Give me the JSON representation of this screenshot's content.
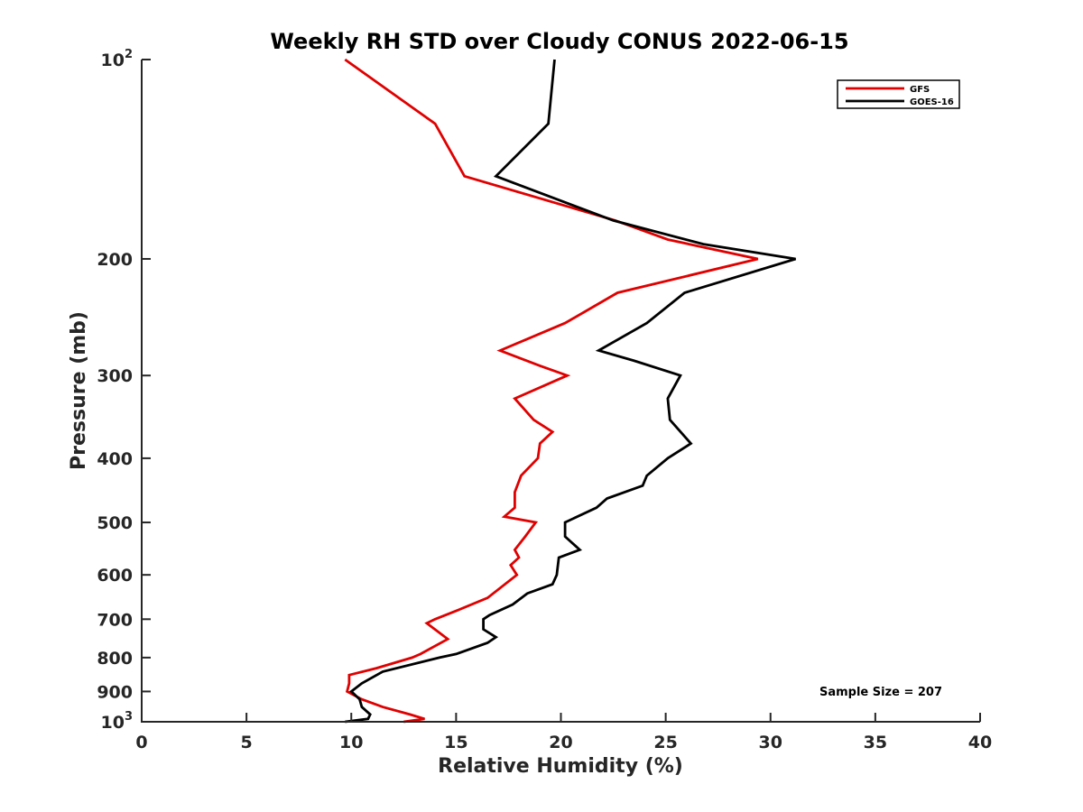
{
  "chart_data": {
    "type": "line",
    "title": "Weekly RH STD over Cloudy CONUS 2022-06-15",
    "xlabel": "Relative Humidity (%)",
    "ylabel": "Pressure (mb)",
    "xlim": [
      0,
      40
    ],
    "ylim": [
      100,
      1000
    ],
    "y_scale": "log",
    "y_reversed": true,
    "x_ticks": [
      0,
      5,
      10,
      15,
      20,
      25,
      30,
      35,
      40
    ],
    "x_tick_labels": [
      "0",
      "5",
      "10",
      "15",
      "20",
      "25",
      "30",
      "35",
      "40"
    ],
    "y_ticks": [
      {
        "value": 100,
        "base": "10",
        "exp": "2"
      },
      {
        "value": 200,
        "label": "200"
      },
      {
        "value": 300,
        "label": "300"
      },
      {
        "value": 400,
        "label": "400"
      },
      {
        "value": 500,
        "label": "500"
      },
      {
        "value": 600,
        "label": "600"
      },
      {
        "value": 700,
        "label": "700"
      },
      {
        "value": 800,
        "label": "800"
      },
      {
        "value": 900,
        "label": "900"
      },
      {
        "value": 1000,
        "base": "10",
        "exp": "3"
      }
    ],
    "grid": false,
    "legend": "top-right",
    "annotation": "Sample Size = 207",
    "series": [
      {
        "name": "GFS",
        "color": "#e00000",
        "points": [
          [
            9.7,
            100
          ],
          [
            14.0,
            125
          ],
          [
            15.4,
            150
          ],
          [
            22.6,
            175
          ],
          [
            25.1,
            187
          ],
          [
            29.4,
            200
          ],
          [
            22.7,
            225
          ],
          [
            20.2,
            250
          ],
          [
            17.1,
            275
          ],
          [
            19.0,
            290
          ],
          [
            20.3,
            300
          ],
          [
            17.8,
            325
          ],
          [
            18.7,
            350
          ],
          [
            19.6,
            365
          ],
          [
            19.0,
            380
          ],
          [
            18.9,
            400
          ],
          [
            18.1,
            425
          ],
          [
            17.8,
            450
          ],
          [
            17.8,
            475
          ],
          [
            17.3,
            490
          ],
          [
            18.8,
            500
          ],
          [
            18.3,
            525
          ],
          [
            17.8,
            550
          ],
          [
            18.0,
            565
          ],
          [
            17.6,
            580
          ],
          [
            17.9,
            600
          ],
          [
            16.5,
            650
          ],
          [
            15.0,
            680
          ],
          [
            14.0,
            700
          ],
          [
            13.6,
            710
          ],
          [
            14.6,
            750
          ],
          [
            13.3,
            790
          ],
          [
            12.9,
            800
          ],
          [
            11.2,
            830
          ],
          [
            9.9,
            850
          ],
          [
            9.9,
            875
          ],
          [
            9.8,
            900
          ],
          [
            10.5,
            925
          ],
          [
            11.5,
            950
          ],
          [
            12.8,
            975
          ],
          [
            13.5,
            990
          ],
          [
            12.5,
            1000
          ]
        ]
      },
      {
        "name": "GOES-16",
        "color": "#000000",
        "points": [
          [
            19.7,
            100
          ],
          [
            19.4,
            125
          ],
          [
            16.9,
            150
          ],
          [
            22.5,
            175
          ],
          [
            26.8,
            190
          ],
          [
            31.2,
            200
          ],
          [
            25.9,
            225
          ],
          [
            24.1,
            250
          ],
          [
            21.8,
            275
          ],
          [
            23.5,
            285
          ],
          [
            25.7,
            300
          ],
          [
            25.1,
            325
          ],
          [
            25.2,
            350
          ],
          [
            26.2,
            380
          ],
          [
            25.1,
            400
          ],
          [
            24.1,
            425
          ],
          [
            23.9,
            440
          ],
          [
            22.2,
            460
          ],
          [
            21.7,
            475
          ],
          [
            20.2,
            500
          ],
          [
            20.2,
            525
          ],
          [
            20.9,
            550
          ],
          [
            19.9,
            565
          ],
          [
            19.8,
            600
          ],
          [
            19.6,
            620
          ],
          [
            18.4,
            640
          ],
          [
            17.7,
            665
          ],
          [
            16.6,
            690
          ],
          [
            16.3,
            700
          ],
          [
            16.3,
            725
          ],
          [
            16.9,
            745
          ],
          [
            16.5,
            760
          ],
          [
            15.0,
            790
          ],
          [
            14.2,
            800
          ],
          [
            11.5,
            840
          ],
          [
            10.5,
            875
          ],
          [
            10.0,
            900
          ],
          [
            10.4,
            925
          ],
          [
            10.5,
            950
          ],
          [
            10.9,
            975
          ],
          [
            10.8,
            990
          ],
          [
            9.7,
            1000
          ]
        ]
      }
    ]
  }
}
